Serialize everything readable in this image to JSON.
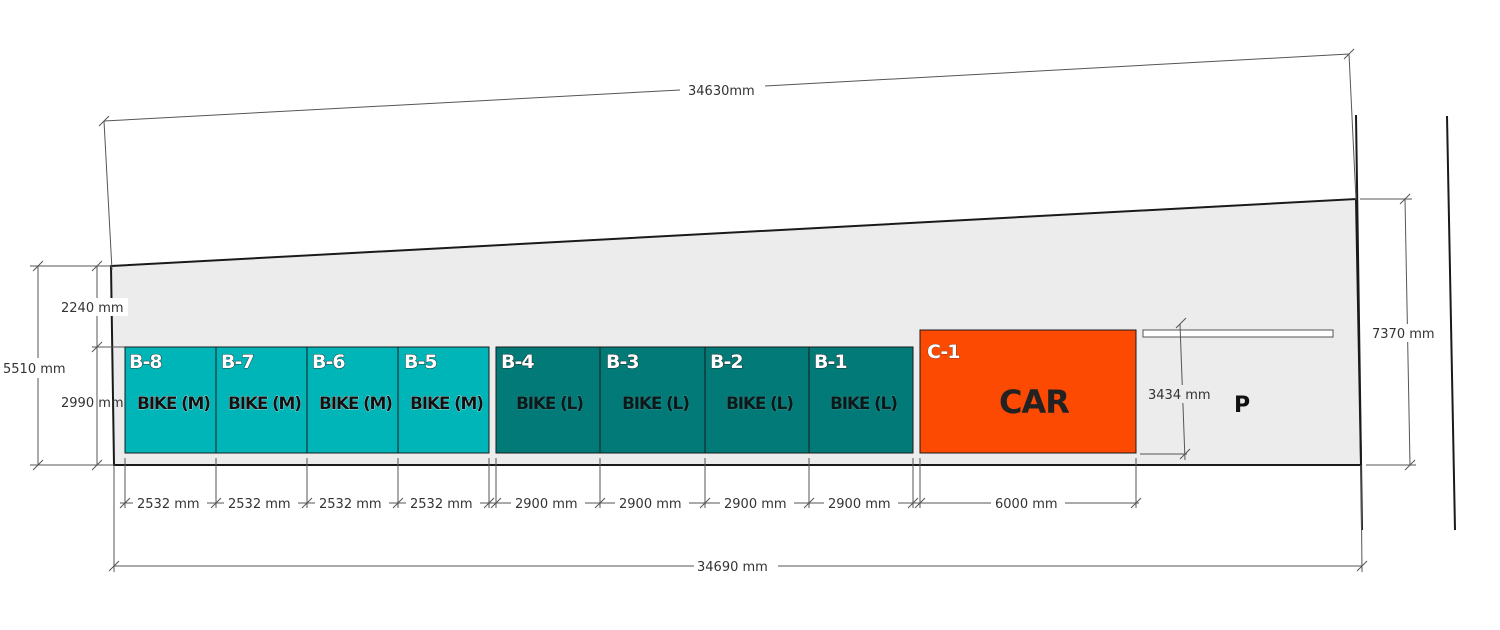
{
  "overall": {
    "top_width": "34630mm",
    "bottom_width": "34690 mm",
    "left_total": "5510 mm",
    "left_upper": "2240 mm",
    "left_lower": "2990 mm",
    "right_height": "7370 mm",
    "p_zone_depth": "3434 mm"
  },
  "bays": [
    {
      "id": "B-8",
      "type": "BIKE (M)",
      "width_label": "2532 mm",
      "width_mm": 2532,
      "group": "M"
    },
    {
      "id": "B-7",
      "type": "BIKE (M)",
      "width_label": "2532 mm",
      "width_mm": 2532,
      "group": "M"
    },
    {
      "id": "B-6",
      "type": "BIKE (M)",
      "width_label": "2532 mm",
      "width_mm": 2532,
      "group": "M"
    },
    {
      "id": "B-5",
      "type": "BIKE (M)",
      "width_label": "2532 mm",
      "width_mm": 2532,
      "group": "M"
    },
    {
      "id": "B-4",
      "type": "BIKE (L)",
      "width_label": "2900 mm",
      "width_mm": 2900,
      "group": "L"
    },
    {
      "id": "B-3",
      "type": "BIKE (L)",
      "width_label": "2900 mm",
      "width_mm": 2900,
      "group": "L"
    },
    {
      "id": "B-2",
      "type": "BIKE (L)",
      "width_label": "2900 mm",
      "width_mm": 2900,
      "group": "L"
    },
    {
      "id": "B-1",
      "type": "BIKE (L)",
      "width_label": "2900 mm",
      "width_mm": 2900,
      "group": "L"
    }
  ],
  "car": {
    "id": "C-1",
    "type": "CAR",
    "width_label": "6000 mm",
    "width_mm": 6000
  },
  "parking_label": "P",
  "colors": {
    "bike_m": "#00b5b8",
    "bike_l": "#027b78",
    "car": "#fd4a03",
    "lot": "#ececec",
    "outline": "#222222"
  }
}
